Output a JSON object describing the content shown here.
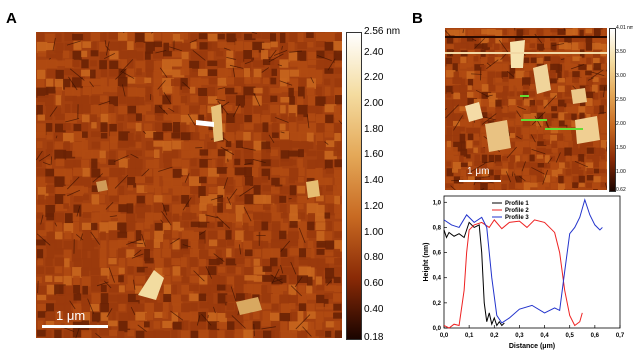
{
  "panel_a": {
    "letter": "A",
    "scalebar": "1 μm",
    "colorbar": {
      "unit_label": "2.56 nm",
      "ticks": [
        "2.40",
        "2.20",
        "2.00",
        "1.80",
        "1.60",
        "1.40",
        "1.20",
        "1.00",
        "0.80",
        "0.60",
        "0.40",
        "0.18"
      ],
      "tick_values": [
        2.4,
        2.2,
        2.0,
        1.8,
        1.6,
        1.4,
        1.2,
        1.0,
        0.8,
        0.6,
        0.4,
        0.18
      ],
      "max": 2.56,
      "min": 0.18
    }
  },
  "panel_b": {
    "letter": "B",
    "scalebar": "1 μm",
    "colorbar": {
      "unit_label": "4.01 nm",
      "ticks": [
        "3.50",
        "3.00",
        "2.50",
        "2.00",
        "1.50",
        "1.00",
        "0.62"
      ],
      "tick_values": [
        3.5,
        3.0,
        2.5,
        2.0,
        1.5,
        1.0,
        0.62
      ],
      "max": 4.01,
      "min": 0.62
    }
  },
  "chart_data": {
    "type": "line",
    "xlabel": "Distance (μm)",
    "ylabel": "Height (nm)",
    "xlim": [
      0.0,
      0.7
    ],
    "ylim": [
      0.0,
      1.05
    ],
    "xticks": [
      "0,0",
      "0,1",
      "0,2",
      "0,3",
      "0,4",
      "0,5",
      "0,6",
      "0,7"
    ],
    "yticks": [
      "0,0",
      "0,2",
      "0,4",
      "0,6",
      "0,8",
      "1,0"
    ],
    "xtick_values": [
      0.0,
      0.1,
      0.2,
      0.3,
      0.4,
      0.5,
      0.6,
      0.7
    ],
    "ytick_values": [
      0.0,
      0.2,
      0.4,
      0.6,
      0.8,
      1.0
    ],
    "legend_position": "top-left",
    "series": [
      {
        "name": "Profile 1",
        "color": "#000000",
        "x": [
          0.0,
          0.01,
          0.02,
          0.04,
          0.06,
          0.08,
          0.1,
          0.12,
          0.14,
          0.15,
          0.16,
          0.17,
          0.18,
          0.19,
          0.2,
          0.21,
          0.22,
          0.23,
          0.24
        ],
        "y": [
          0.78,
          0.72,
          0.76,
          0.73,
          0.75,
          0.72,
          0.84,
          0.8,
          0.82,
          0.6,
          0.2,
          0.05,
          0.12,
          0.03,
          0.08,
          0.02,
          0.05,
          0.02,
          0.04
        ]
      },
      {
        "name": "Profile 2",
        "color": "#ee2222",
        "x": [
          0.0,
          0.02,
          0.04,
          0.06,
          0.08,
          0.09,
          0.1,
          0.12,
          0.15,
          0.18,
          0.2,
          0.23,
          0.26,
          0.3,
          0.33,
          0.36,
          0.4,
          0.42,
          0.44,
          0.46,
          0.48,
          0.5,
          0.52,
          0.54,
          0.55
        ],
        "y": [
          0.02,
          0.0,
          0.03,
          0.02,
          0.3,
          0.6,
          0.78,
          0.82,
          0.84,
          0.8,
          0.86,
          0.79,
          0.84,
          0.85,
          0.8,
          0.86,
          0.84,
          0.8,
          0.76,
          0.6,
          0.3,
          0.1,
          0.02,
          0.05,
          0.12
        ]
      },
      {
        "name": "Profile 3",
        "color": "#2233cc",
        "x": [
          0.0,
          0.03,
          0.06,
          0.09,
          0.12,
          0.15,
          0.17,
          0.19,
          0.21,
          0.23,
          0.26,
          0.3,
          0.35,
          0.4,
          0.44,
          0.46,
          0.48,
          0.5,
          0.52,
          0.54,
          0.56,
          0.58,
          0.6,
          0.62,
          0.63
        ],
        "y": [
          0.86,
          0.82,
          0.8,
          0.9,
          0.84,
          0.88,
          0.8,
          0.4,
          0.1,
          0.04,
          0.08,
          0.15,
          0.18,
          0.12,
          0.16,
          0.14,
          0.45,
          0.75,
          0.8,
          0.88,
          1.02,
          0.9,
          0.82,
          0.78,
          0.8
        ]
      }
    ]
  }
}
